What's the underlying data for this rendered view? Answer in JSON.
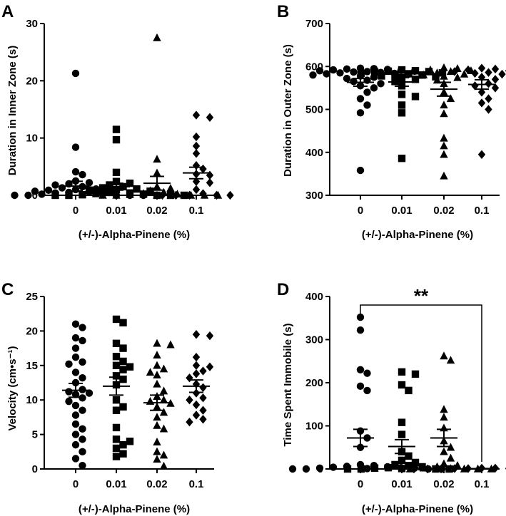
{
  "chart_data": [
    {
      "panel": "A",
      "type": "scatter",
      "xlabel": "(+/-)-Alpha-Pinene (%)",
      "ylabel": "Duration in Inner Zone (s)",
      "categories": [
        "0",
        "0.01",
        "0.02",
        "0.1"
      ],
      "ylim": [
        0,
        30
      ],
      "yticks": [
        0,
        10,
        20,
        30
      ],
      "markers": [
        "circle",
        "square",
        "triangle",
        "diamond"
      ],
      "groups": [
        {
          "points": [
            21.3,
            8.4,
            4.1,
            3.6,
            2.5,
            2.2,
            2.0,
            1.8,
            1.5,
            1.3,
            1.1,
            1.0,
            0.9,
            0.8,
            0.7,
            0.6,
            0.5,
            0.4,
            0.3,
            0.2,
            0.1,
            0.0,
            0.0,
            0.0,
            0.0,
            0.0
          ],
          "mean": 1.6,
          "sem": 0.85
        },
        {
          "points": [
            11.5,
            9.7,
            4.0,
            2.4,
            2.1,
            1.8,
            1.5,
            1.3,
            1.1,
            1.0,
            0.9,
            0.7,
            0.5,
            0.4,
            0.3,
            0.2,
            0.1,
            0.0,
            0.0,
            0.0,
            0.0,
            0.0
          ],
          "mean": 1.5,
          "sem": 0.6
        },
        {
          "points": [
            27.5,
            6.3,
            3.9,
            1.5,
            1.2,
            0.8,
            0.5,
            0.3,
            0.2,
            0.1,
            0.0,
            0.0,
            0.0,
            0.0,
            0.0,
            0.0
          ],
          "mean": 2.1,
          "sem": 1.2
        },
        {
          "points": [
            14.0,
            13.6,
            10.2,
            8.6,
            7.3,
            5.2,
            4.6,
            3.7,
            3.5,
            2.4,
            2.2,
            1.0,
            0.3,
            0.0,
            0.0,
            0.0,
            0.0,
            0.0
          ],
          "mean": 3.9,
          "sem": 1.0
        }
      ]
    },
    {
      "panel": "B",
      "type": "scatter",
      "xlabel": "(+/-)-Alpha-Pinene (%)",
      "ylabel": "Duration in Outer Zone (s)",
      "categories": [
        "0",
        "0.01",
        "0.02",
        "0.1"
      ],
      "ylim": [
        300,
        700
      ],
      "yticks": [
        300,
        400,
        500,
        600,
        700
      ],
      "markers": [
        "circle",
        "square",
        "triangle",
        "diamond"
      ],
      "groups": [
        {
          "points": [
            596,
            595,
            594,
            593,
            592,
            591,
            590,
            589,
            588,
            587,
            586,
            585,
            584,
            583,
            582,
            580,
            578,
            575,
            572,
            568,
            565,
            560,
            555,
            550,
            540,
            525,
            510,
            492,
            358
          ],
          "mean": 563,
          "sem": 9
        },
        {
          "points": [
            592,
            590,
            589,
            588,
            587,
            585,
            584,
            583,
            582,
            580,
            578,
            576,
            574,
            570,
            565,
            555,
            535,
            530,
            510,
            492,
            386
          ],
          "mean": 564,
          "sem": 10
        },
        {
          "points": [
            597,
            595,
            592,
            590,
            588,
            585,
            582,
            580,
            577,
            574,
            568,
            560,
            540,
            525,
            510,
            490,
            433,
            415,
            395,
            345
          ],
          "mean": 547,
          "sem": 16
        },
        {
          "points": [
            596,
            594,
            592,
            590,
            588,
            586,
            584,
            582,
            575,
            570,
            560,
            555,
            550,
            540,
            525,
            515,
            500,
            395
          ],
          "mean": 558,
          "sem": 11
        }
      ]
    },
    {
      "panel": "C",
      "type": "scatter",
      "xlabel": "(+/-)-Alpha-Pinene (%)",
      "ylabel": "Velocity (cm•s⁻¹)",
      "categories": [
        "0",
        "0.01",
        "0.02",
        "0.1"
      ],
      "ylim": [
        0,
        25
      ],
      "yticks": [
        0,
        5,
        10,
        15,
        20,
        25
      ],
      "markers": [
        "circle",
        "square",
        "triangle",
        "diamond"
      ],
      "groups": [
        {
          "points": [
            21.0,
            20.5,
            19.0,
            18.6,
            17.5,
            16.2,
            15.5,
            15.2,
            14.0,
            13.2,
            12.5,
            11.5,
            11.2,
            11.0,
            10.8,
            10.3,
            9.8,
            9.2,
            8.5,
            7.8,
            6.5,
            5.8,
            5.0,
            4.3,
            3.5,
            2.5,
            1.5,
            0.5
          ],
          "mean": 11.4,
          "sem": 1.0
        },
        {
          "points": [
            21.7,
            21.2,
            18.2,
            17.5,
            16.3,
            15.6,
            15.0,
            14.8,
            14.4,
            13.5,
            13.0,
            12.2,
            10.0,
            9.0,
            8.5,
            6.0,
            4.3,
            4.0,
            3.5,
            3.0,
            2.2,
            1.8
          ],
          "mean": 12.0,
          "sem": 1.3
        },
        {
          "points": [
            18.2,
            18.0,
            16.5,
            15.0,
            14.5,
            14.0,
            13.6,
            12.3,
            11.3,
            10.5,
            10.0,
            9.8,
            9.5,
            9.0,
            8.2,
            7.5,
            6.3,
            5.8,
            3.9,
            2.5,
            2.0,
            1.4,
            0.4
          ],
          "mean": 9.6,
          "sem": 1.1
        },
        {
          "points": [
            19.5,
            19.3,
            16.2,
            15.0,
            14.8,
            14.2,
            13.8,
            13.2,
            12.3,
            11.8,
            11.0,
            10.3,
            10.0,
            9.3,
            8.5,
            7.8,
            7.2,
            6.8
          ],
          "mean": 12.0,
          "sem": 0.9
        }
      ]
    },
    {
      "panel": "D",
      "type": "scatter",
      "xlabel": "(+/-)-Alpha-Pinene (%)",
      "ylabel": "Time Spent Immobile (s)",
      "categories": [
        "0",
        "0.01",
        "0.02",
        "0.1"
      ],
      "ylim": [
        0,
        400
      ],
      "yticks": [
        0,
        100,
        200,
        300,
        400
      ],
      "markers": [
        "circle",
        "square",
        "triangle",
        "diamond"
      ],
      "significance": {
        "from": "0",
        "to": "0.1",
        "label": "**"
      },
      "groups": [
        {
          "points": [
            352,
            322,
            230,
            222,
            192,
            182,
            88,
            72,
            50,
            10,
            8,
            6,
            5,
            4,
            3,
            2,
            2,
            1,
            0,
            0,
            0,
            0
          ],
          "mean": 72,
          "sem": 20
        },
        {
          "points": [
            225,
            220,
            195,
            182,
            108,
            80,
            40,
            30,
            20,
            15,
            10,
            8,
            5,
            3,
            2,
            1,
            0,
            0,
            0,
            0
          ],
          "mean": 52,
          "sem": 16
        },
        {
          "points": [
            262,
            252,
            138,
            120,
            95,
            65,
            50,
            40,
            25,
            12,
            8,
            5,
            2,
            1,
            0,
            0,
            0,
            0
          ],
          "mean": 72,
          "sem": 20
        },
        {
          "points": [
            2,
            2,
            1,
            1,
            1,
            0,
            0,
            0,
            0,
            0,
            0,
            0
          ],
          "mean": 0.8,
          "sem": 0.3
        }
      ]
    }
  ]
}
